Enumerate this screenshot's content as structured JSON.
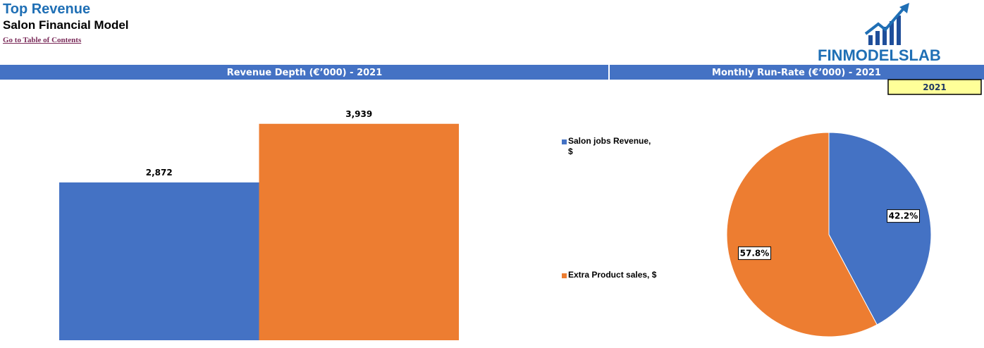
{
  "header": {
    "title": "Top Revenue",
    "subtitle": "Salon Financial Model",
    "link": "Go to Table of Contents",
    "logo": "FINMODELSLAB"
  },
  "sections": [
    "Revenue Depth (€’000) - 2021",
    "Monthly Run-Rate (€’000) - 2021"
  ],
  "year_selector": "2021",
  "chart_data": [
    {
      "type": "bar",
      "categories": [
        null,
        null
      ],
      "values": [
        2872,
        3939
      ],
      "value_labels": [
        "2,872",
        "3,939"
      ],
      "colors": [
        "#4472c4",
        "#ed7d31"
      ],
      "ylim": [
        0,
        4000
      ]
    },
    {
      "type": "pie",
      "categories": [
        "Salon jobs Revenue, $",
        "Extra Product sales, $"
      ],
      "values": [
        42.2,
        57.8
      ],
      "value_labels": [
        "42.2%",
        "57.8%"
      ],
      "colors": [
        "#4472c4",
        "#ed7d31"
      ],
      "legend": "left"
    }
  ]
}
